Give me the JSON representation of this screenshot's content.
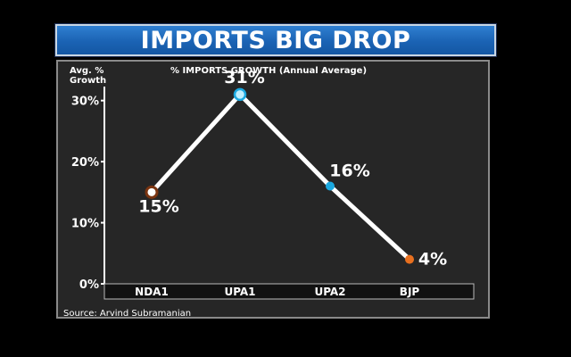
{
  "header": {
    "title": "IMPORTS BIG DROP"
  },
  "chart_data": {
    "type": "line",
    "title": "% IMPORTS GROWTH (Annual Average)",
    "ylabel_line1": "Avg. %",
    "ylabel_line2": "Growth",
    "categories": [
      "NDA1",
      "UPA1",
      "UPA2",
      "BJP"
    ],
    "values": [
      15,
      31,
      16,
      4
    ],
    "value_labels": [
      "15%",
      "31%",
      "16%",
      "4%"
    ],
    "marker_colors": [
      "#7a3410",
      "#1aa8e0",
      "#1aa8e0",
      "#e8701f"
    ],
    "yticks": [
      0,
      10,
      20,
      30
    ],
    "ytick_labels": [
      "0%",
      "10%",
      "20%",
      "30%"
    ],
    "ylim": [
      0,
      32
    ],
    "grid": false,
    "source": "Source: Arvind Subramanian"
  }
}
